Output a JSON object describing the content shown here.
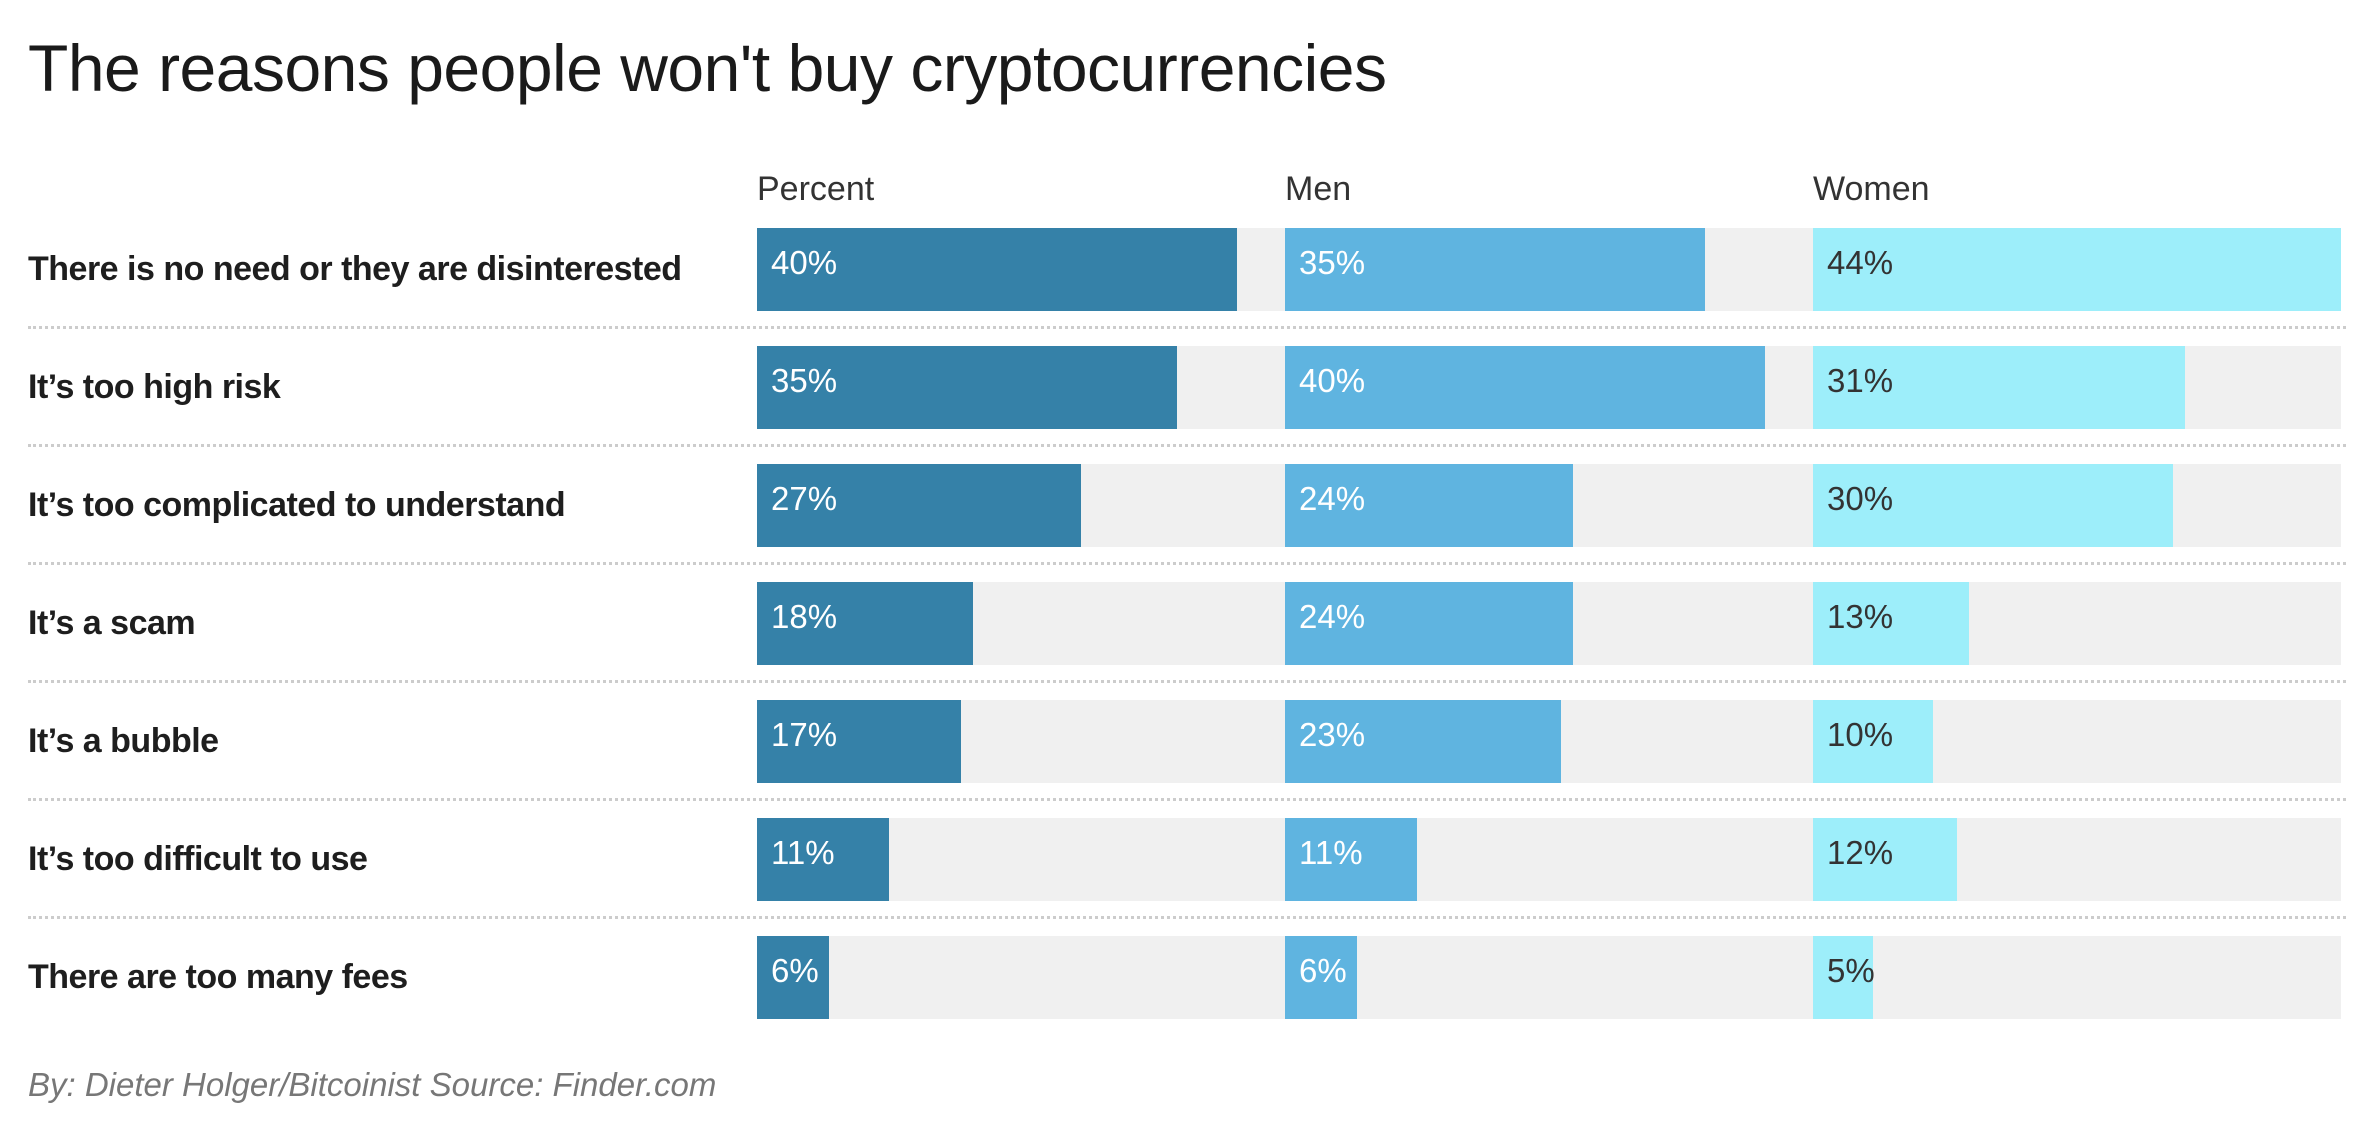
{
  "chart_data": {
    "type": "bar",
    "title": "The reasons people won't buy cryptocurrencies",
    "categories": [
      "There is no need or they are disinterested",
      "It’s too high risk",
      "It’s too complicated to understand",
      "It’s a scam",
      "It’s a bubble",
      "It’s too difficult to use",
      "There are too many fees"
    ],
    "series": [
      {
        "name": "Percent",
        "values": [
          40,
          35,
          27,
          18,
          17,
          11,
          6
        ],
        "color": "#3581a8",
        "text_color": "#ffffff"
      },
      {
        "name": "Men",
        "values": [
          35,
          40,
          24,
          24,
          23,
          11,
          6
        ],
        "color": "#5fb4e0",
        "text_color": "#ffffff"
      },
      {
        "name": "Women",
        "values": [
          44,
          31,
          30,
          13,
          10,
          12,
          5
        ],
        "color": "#9deefa",
        "text_color": "#333333"
      }
    ],
    "value_suffix": "%",
    "xlim": [
      0,
      44
    ],
    "track_color": "#f0f0f0",
    "footer": "By: Dieter Holger/Bitcoinist Source: Finder.com"
  }
}
